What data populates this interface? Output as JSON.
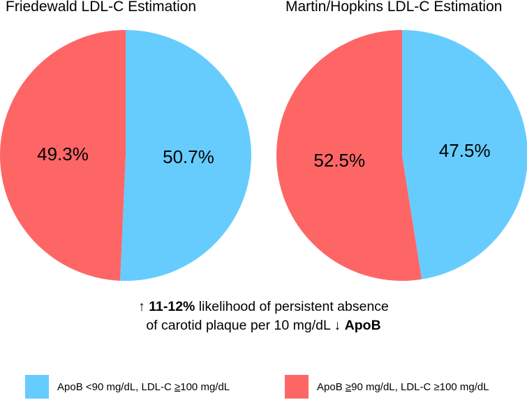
{
  "chart_data": [
    {
      "type": "pie",
      "title": "Friedewald LDL-C Estimation",
      "slices": [
        {
          "label": "ApoB <90 mg/dL, LDL-C ≥100 mg/dL",
          "value": 50.7,
          "display": "50.7%",
          "color": "#66ccfe"
        },
        {
          "label": "ApoB ≥90 mg/dL, LDL-C ≥100 mg/dL",
          "value": 49.3,
          "display": "49.3%",
          "color": "#fe6666"
        }
      ]
    },
    {
      "type": "pie",
      "title": "Martin/Hopkins LDL-C Estimation",
      "slices": [
        {
          "label": "ApoB <90 mg/dL, LDL-C ≥100 mg/dL",
          "value": 47.5,
          "display": "47.5%",
          "color": "#66ccfe"
        },
        {
          "label": "ApoB ≥90 mg/dL, LDL-C ≥100 mg/dL",
          "value": 52.5,
          "display": "52.5%",
          "color": "#fe6666"
        }
      ]
    }
  ],
  "caption": {
    "line1_prefix": "↑ ",
    "line1_bold": "11-12%",
    "line1_rest": " likelihood of persistent absence",
    "line2_text": "of carotid plaque per 10 mg/dL ↓ ",
    "line2_bold": "ApoB"
  },
  "legend": [
    {
      "pre": "ApoB <90 mg/dL, LDL-C ",
      "sym": "≥",
      "post": "100 mg/dL",
      "color": "#66ccfe"
    },
    {
      "pre": "ApoB ",
      "sym": "≥",
      "post": "90 mg/dL, LDL-C ≥100 mg/dL",
      "color": "#fe6666"
    }
  ]
}
